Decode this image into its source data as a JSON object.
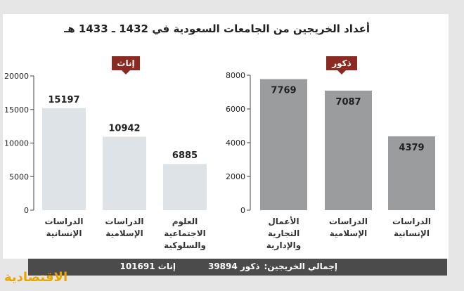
{
  "title": "أعداد الخريجين من الجامعات السعودية في 1432 ـ 1433 هـ",
  "logo_text": "الاقتصادية",
  "totals": {
    "label": "إجمالي الخريجين:",
    "male": "ذكور 39894",
    "female": "إناث 101691"
  },
  "colors": {
    "female_bar": "#dde3e6",
    "male_bar": "#9a9c9e",
    "badge": "#8b2a22",
    "total_bar": "#4b4b4b",
    "logo": "#e9a400"
  },
  "chart_data": [
    {
      "type": "bar",
      "badge": "إناث",
      "ylim": [
        0,
        20000
      ],
      "yticks": [
        "20000",
        "15000",
        "10000",
        "5000",
        "0"
      ],
      "ytick_values": [
        20000,
        15000,
        10000,
        5000,
        0
      ],
      "categories": [
        [
          "الدراسات",
          "الإنسانية"
        ],
        [
          "الدراسات",
          "الإسلامية"
        ],
        [
          "العلوم",
          "الاجتماعية",
          "والسلوكية"
        ]
      ],
      "values": [
        15197,
        10942,
        6885
      ],
      "labels": [
        "15197",
        "10942",
        "6885"
      ]
    },
    {
      "type": "bar",
      "badge": "ذكور",
      "ylim": [
        0,
        8000
      ],
      "yticks": [
        "8000",
        "6000",
        "4000",
        "2000",
        "0"
      ],
      "ytick_values": [
        8000,
        6000,
        4000,
        2000,
        0
      ],
      "categories": [
        [
          "الأعمال",
          "التجارية",
          "والإدارية"
        ],
        [
          "الدراسات",
          "الإسلامية"
        ],
        [
          "الدراسات",
          "الإنسانية"
        ]
      ],
      "values": [
        7769,
        7087,
        4379
      ],
      "labels": [
        "7769",
        "7087",
        "4379"
      ]
    }
  ]
}
